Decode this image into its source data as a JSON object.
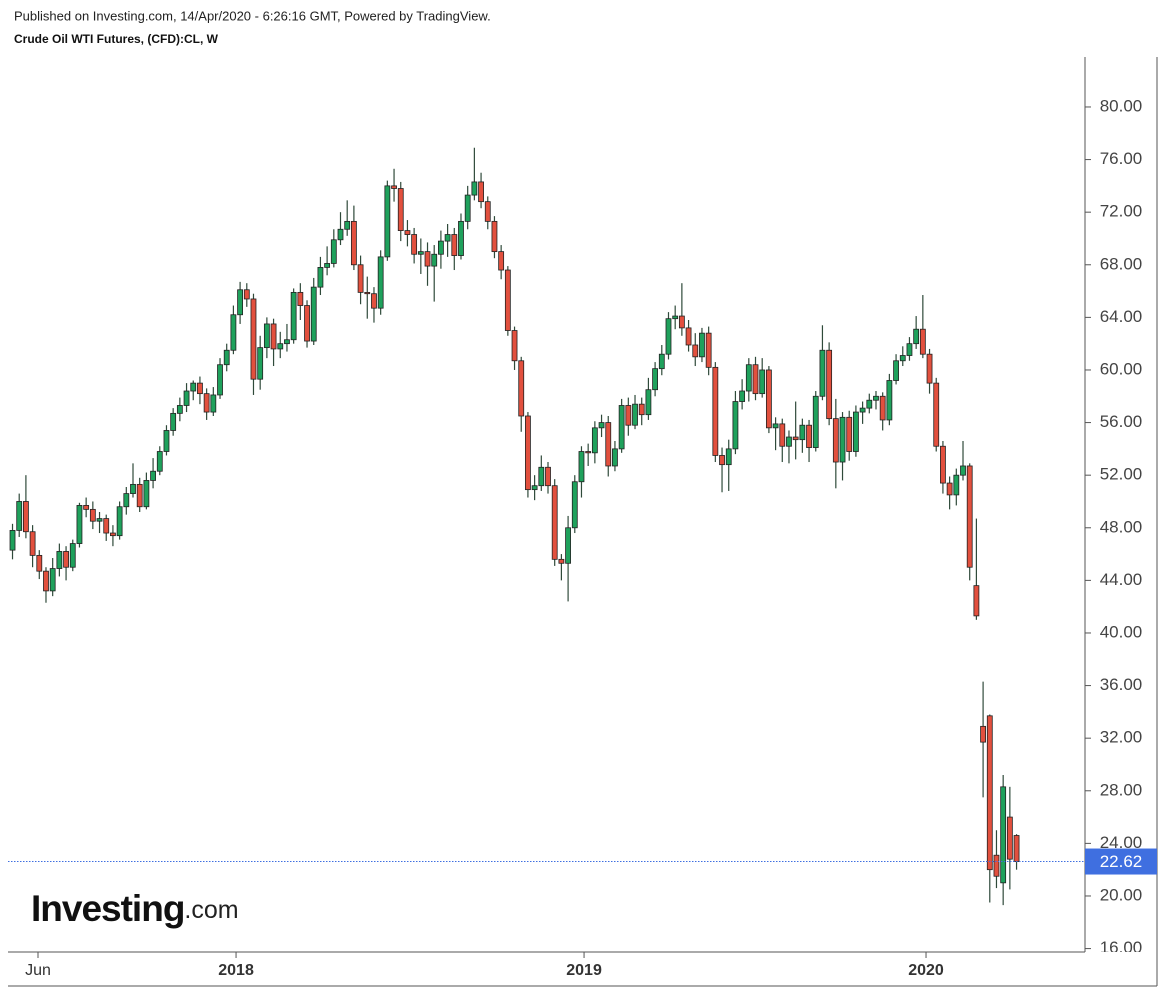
{
  "chart_data": {
    "type": "candlestick",
    "published": "Published on Investing.com, 14/Apr/2020 - 6:26:16 GMT, Powered by TradingView.",
    "title": "Crude Oil WTI Futures, (CFD):CL, W",
    "watermark": {
      "name": "Investing",
      "suffix": ".com"
    },
    "up_color": "#1fa15c",
    "down_color": "#e2503e",
    "wick_color": "#2f4a3a",
    "price_line_color": "#3f6fe0",
    "categories": [
      null,
      null,
      null,
      null,
      null,
      null,
      null,
      null,
      null,
      null,
      null,
      null,
      null,
      null,
      null,
      null,
      null,
      null,
      null,
      null,
      null,
      null,
      null,
      null,
      null,
      null,
      null,
      null,
      null,
      null,
      null,
      null,
      null,
      null,
      null,
      null,
      null,
      null,
      null,
      null,
      null,
      null,
      null,
      null,
      null,
      null,
      null,
      null,
      null,
      null,
      null,
      null,
      null,
      null,
      null,
      null,
      null,
      null,
      null,
      null,
      null,
      null,
      null,
      null,
      null,
      null,
      null,
      null,
      null,
      null,
      null,
      null,
      null,
      null,
      null,
      null,
      null,
      null,
      null,
      null,
      null,
      null,
      null,
      null,
      null,
      null,
      null,
      null,
      null,
      null,
      null,
      null,
      null,
      null,
      null,
      null,
      null,
      null,
      null,
      null,
      null,
      null,
      null,
      null,
      null,
      null,
      null,
      null,
      null,
      null,
      null,
      null,
      null,
      null,
      null,
      null,
      null,
      null,
      null,
      null,
      null,
      null,
      null,
      null,
      null,
      null,
      null,
      null,
      null,
      null,
      null,
      null,
      null,
      null,
      null,
      null,
      null,
      null,
      null,
      null,
      null,
      null,
      null,
      null,
      null,
      null,
      null,
      null,
      null,
      null,
      null
    ],
    "open": [
      46.3,
      47.8,
      50.0,
      47.7,
      45.9,
      44.7,
      43.2,
      44.9,
      46.2,
      45.0,
      46.8,
      49.7,
      49.4,
      48.5,
      48.7,
      47.6,
      47.4,
      49.6,
      50.6,
      51.3,
      49.6,
      51.6,
      52.3,
      53.8,
      55.4,
      56.7,
      57.3,
      58.4,
      59.0,
      58.2,
      56.8,
      58.1,
      60.4,
      61.5,
      64.2,
      66.1,
      65.4,
      59.3,
      61.7,
      63.5,
      61.6,
      62.0,
      62.3,
      65.9,
      64.9,
      62.2,
      66.3,
      67.8,
      68.1,
      69.9,
      70.7,
      71.3,
      68.0,
      65.9,
      65.8,
      64.7,
      68.6,
      74.0,
      73.8,
      70.6,
      70.3,
      68.8,
      69.0,
      67.9,
      68.8,
      69.8,
      70.3,
      68.7,
      71.3,
      73.3,
      74.3,
      72.8,
      71.3,
      69.0,
      67.6,
      63.0,
      60.7,
      56.5,
      50.9,
      51.2,
      52.6,
      51.2,
      45.6,
      45.3,
      48.0,
      51.5,
      53.8,
      53.7,
      55.6,
      56.0,
      52.7,
      54.0,
      57.3,
      55.8,
      57.4,
      56.6,
      58.5,
      60.1,
      61.2,
      63.9,
      64.1,
      63.2,
      61.9,
      61.0,
      62.8,
      60.2,
      53.5,
      52.8,
      54.0,
      57.6,
      58.4,
      60.4,
      58.2,
      60.0,
      55.6,
      55.9,
      54.2,
      54.9,
      54.7,
      55.8,
      54.1,
      58.0,
      61.5,
      56.3,
      53.0,
      56.4,
      53.8,
      56.8,
      57.1,
      57.7,
      58.0,
      56.2,
      59.2,
      60.7,
      61.1,
      62.0,
      63.1,
      61.2,
      59.0,
      54.2,
      51.4,
      50.5,
      52.0,
      52.7,
      43.6,
      32.9,
      33.7,
      23.1,
      21.0,
      26.0,
      24.6
    ],
    "high": [
      48.3,
      50.6,
      52.0,
      48.2,
      46.3,
      45.0,
      45.7,
      46.8,
      46.6,
      47.1,
      49.9,
      50.3,
      50.0,
      49.2,
      49.0,
      48.2,
      50.0,
      51.1,
      52.9,
      51.8,
      52.2,
      53.3,
      54.2,
      55.8,
      57.1,
      57.9,
      59.0,
      59.2,
      59.5,
      58.6,
      58.7,
      60.9,
      62.0,
      64.9,
      66.7,
      66.6,
      65.8,
      62.6,
      64.0,
      63.9,
      62.9,
      63.5,
      66.2,
      66.6,
      65.3,
      67.0,
      68.6,
      69.4,
      70.7,
      72.0,
      72.9,
      72.5,
      68.7,
      67.1,
      66.3,
      69.1,
      74.4,
      75.3,
      74.3,
      71.4,
      70.8,
      70.0,
      69.7,
      69.5,
      70.6,
      71.1,
      70.8,
      71.9,
      74.0,
      76.9,
      75.0,
      73.2,
      71.7,
      69.5,
      67.9,
      63.3,
      61.0,
      56.8,
      52.0,
      53.5,
      53.0,
      51.7,
      46.0,
      48.9,
      52.0,
      54.2,
      54.4,
      56.1,
      56.6,
      56.5,
      54.6,
      57.8,
      57.9,
      58.1,
      57.9,
      59.4,
      60.6,
      61.9,
      64.4,
      64.9,
      66.6,
      63.8,
      62.8,
      63.2,
      63.3,
      60.6,
      54.1,
      54.7,
      58.4,
      59.3,
      60.9,
      61.0,
      60.9,
      60.3,
      56.4,
      56.3,
      55.4,
      57.6,
      56.3,
      56.2,
      58.4,
      63.4,
      62.1,
      57.8,
      56.8,
      56.9,
      57.3,
      57.6,
      58.2,
      58.4,
      58.3,
      59.7,
      61.2,
      61.8,
      62.5,
      64.1,
      65.7,
      61.6,
      59.4,
      54.6,
      51.9,
      52.5,
      54.6,
      52.9,
      48.7,
      36.3,
      33.8,
      25.0,
      29.2,
      28.3,
      24.7
    ],
    "low": [
      45.6,
      47.3,
      47.2,
      45.0,
      44.1,
      42.3,
      42.8,
      44.3,
      44.0,
      44.7,
      46.5,
      48.8,
      47.9,
      47.6,
      47.0,
      46.6,
      47.1,
      49.0,
      50.3,
      49.2,
      49.4,
      51.0,
      52.0,
      53.5,
      55.0,
      56.1,
      56.8,
      57.7,
      57.4,
      56.2,
      56.5,
      57.8,
      59.9,
      61.2,
      63.5,
      64.8,
      58.1,
      58.5,
      60.9,
      60.3,
      60.9,
      61.4,
      62.0,
      63.8,
      61.7,
      61.9,
      65.7,
      67.2,
      67.8,
      69.5,
      70.2,
      67.6,
      65.0,
      63.9,
      63.6,
      64.2,
      68.3,
      72.8,
      69.8,
      69.4,
      68.1,
      67.3,
      66.4,
      65.2,
      67.7,
      68.6,
      67.6,
      68.4,
      70.7,
      72.9,
      72.3,
      70.7,
      68.5,
      66.9,
      62.6,
      60.0,
      55.3,
      50.3,
      50.1,
      50.8,
      50.6,
      45.1,
      44.0,
      42.4,
      47.6,
      50.3,
      52.7,
      52.9,
      54.9,
      51.9,
      52.3,
      53.7,
      55.0,
      55.5,
      55.8,
      56.2,
      58.0,
      59.6,
      60.8,
      63.1,
      62.6,
      61.4,
      60.3,
      60.6,
      59.6,
      53.0,
      50.7,
      50.8,
      53.6,
      57.0,
      57.6,
      57.7,
      57.9,
      55.2,
      53.9,
      53.0,
      52.9,
      53.2,
      53.7,
      53.0,
      53.8,
      57.7,
      55.8,
      51.0,
      51.6,
      53.1,
      53.4,
      55.9,
      56.7,
      57.0,
      55.4,
      55.8,
      58.9,
      60.3,
      60.7,
      61.6,
      60.9,
      58.2,
      53.8,
      50.6,
      49.4,
      49.7,
      51.6,
      44.0,
      41.0,
      27.5,
      19.5,
      20.6,
      19.3,
      20.5,
      22.0
    ],
    "close": [
      47.8,
      50.0,
      47.7,
      45.9,
      44.7,
      43.2,
      44.9,
      46.2,
      45.0,
      46.8,
      49.7,
      49.4,
      48.5,
      48.7,
      47.6,
      47.4,
      49.6,
      50.6,
      51.3,
      49.6,
      51.6,
      52.3,
      53.8,
      55.4,
      56.7,
      57.3,
      58.4,
      59.0,
      58.2,
      56.8,
      58.1,
      60.4,
      61.5,
      64.2,
      66.1,
      65.4,
      59.3,
      61.7,
      63.5,
      61.6,
      62.0,
      62.3,
      65.9,
      64.9,
      62.2,
      66.3,
      67.8,
      68.1,
      69.9,
      70.7,
      71.3,
      68.0,
      65.9,
      65.8,
      64.7,
      68.6,
      74.0,
      73.8,
      70.6,
      70.3,
      68.8,
      69.0,
      67.9,
      68.8,
      69.8,
      70.3,
      68.7,
      71.3,
      73.3,
      74.3,
      72.8,
      71.3,
      69.0,
      67.6,
      63.0,
      60.7,
      56.5,
      50.9,
      51.2,
      52.6,
      51.2,
      45.6,
      45.3,
      48.0,
      51.5,
      53.8,
      53.7,
      55.6,
      56.0,
      52.7,
      54.0,
      57.3,
      55.8,
      57.4,
      56.6,
      58.5,
      60.1,
      61.2,
      63.9,
      64.1,
      63.2,
      61.9,
      61.0,
      62.8,
      60.2,
      53.5,
      52.8,
      54.0,
      57.6,
      58.4,
      60.4,
      58.2,
      60.0,
      55.6,
      55.9,
      54.2,
      54.9,
      54.7,
      55.8,
      54.1,
      58.0,
      61.5,
      56.3,
      53.0,
      56.4,
      53.8,
      56.8,
      57.1,
      57.7,
      58.0,
      56.2,
      59.2,
      60.7,
      61.1,
      62.0,
      63.1,
      61.2,
      59.0,
      54.2,
      51.4,
      50.5,
      52.0,
      52.7,
      45.0,
      41.3,
      31.7,
      22.0,
      21.5,
      28.3,
      22.8,
      22.62
    ],
    "xlim": [
      -0.6,
      160.3
    ],
    "xticks": [
      {
        "value": 3.88,
        "label": "Jun"
      },
      {
        "value": 33.47,
        "label": "2018"
      },
      {
        "value": 85.46,
        "label": "2019"
      },
      {
        "value": 136.55,
        "label": "2020"
      }
    ],
    "ylim": [
      15.74,
      83.8
    ],
    "yticks": [
      {
        "value": 16,
        "label": "16.00"
      },
      {
        "value": 20,
        "label": "20.00"
      },
      {
        "value": 24,
        "label": "24.00"
      },
      {
        "value": 28,
        "label": "28.00"
      },
      {
        "value": 32,
        "label": "32.00"
      },
      {
        "value": 36,
        "label": "36.00"
      },
      {
        "value": 40,
        "label": "40.00"
      },
      {
        "value": 44,
        "label": "44.00"
      },
      {
        "value": 48,
        "label": "48.00"
      },
      {
        "value": 52,
        "label": "52.00"
      },
      {
        "value": 56,
        "label": "56.00"
      },
      {
        "value": 60,
        "label": "60.00"
      },
      {
        "value": 64,
        "label": "64.00"
      },
      {
        "value": 68,
        "label": "68.00"
      },
      {
        "value": 72,
        "label": "72.00"
      },
      {
        "value": 76,
        "label": "76.00"
      },
      {
        "value": 80,
        "label": "80.00"
      }
    ]
  }
}
